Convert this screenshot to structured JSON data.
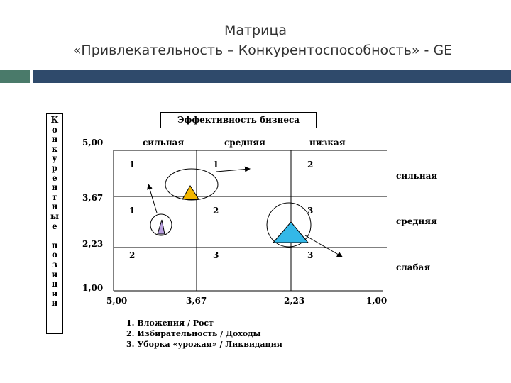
{
  "title_line1": "Матрица",
  "title_line2": "«Привлекательность – Конкурентоспособность» - GE",
  "side_label_chars": [
    "К",
    "о",
    "н",
    "к",
    "у",
    "р",
    "е",
    "н",
    "т",
    "н",
    "ы",
    "е",
    "",
    "п",
    "о",
    "з",
    "и",
    "ц",
    "и",
    "и"
  ],
  "header_label": "Эффективность бизнеса",
  "col_labels": [
    "сильная",
    "средняя",
    "низкая"
  ],
  "row_labels": [
    "сильная",
    "средняя",
    "слабая"
  ],
  "y_ticks": [
    "5,00",
    "3,67",
    "2,23",
    "1,00"
  ],
  "x_ticks": [
    "5,00",
    "3,67",
    "2,23",
    "1,00"
  ],
  "cells": [
    [
      "1",
      "1",
      "2"
    ],
    [
      "1",
      "2",
      "3"
    ],
    [
      "2",
      "3",
      "3"
    ]
  ],
  "legend": [
    "1.  Вложения / Рост",
    "2.  Избирательность / Доходы",
    "3.  Уборка «урожая» / Ликвидация"
  ],
  "colors": {
    "yellow_triangle": "#f2b600",
    "purple_triangle": "#b9a0e0",
    "blue_triangle": "#33b8e8",
    "header_green": "#4a7a6a",
    "header_blue": "#2f4a6b"
  }
}
